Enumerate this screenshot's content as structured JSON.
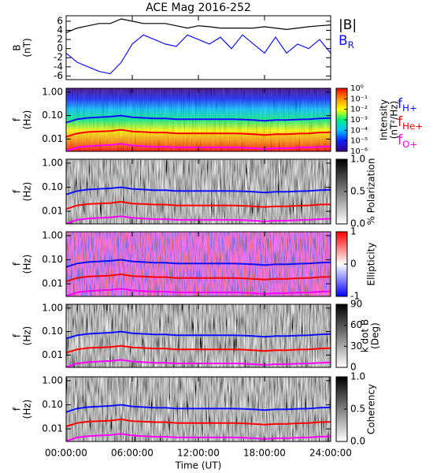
{
  "chart_data": [
    {
      "type": "line",
      "title": "ACE Mag 2016-252",
      "y_label": [
        "B",
        "(nT)"
      ],
      "x": [
        0,
        1,
        2,
        3,
        4,
        5,
        6,
        7,
        8,
        9,
        10,
        11,
        12,
        13,
        14,
        15,
        16,
        17,
        18,
        19,
        20,
        21,
        22,
        23,
        24
      ],
      "xlim": [
        0,
        24
      ],
      "xticks": [
        0,
        6,
        12,
        18,
        24
      ],
      "ylim": [
        -6.8,
        7.2
      ],
      "yticks": [
        6,
        4,
        2,
        0,
        -2,
        -4,
        -6
      ],
      "series": [
        {
          "name": "|B|",
          "color": "#000000",
          "values": [
            3.5,
            4.5,
            5,
            5.5,
            5.5,
            6.5,
            6,
            5.5,
            5.5,
            5.5,
            5,
            4.5,
            5,
            4.8,
            4.5,
            4.5,
            4.5,
            4.5,
            4.8,
            4.5,
            4.2,
            4.5,
            4.8,
            5,
            5.2
          ]
        },
        {
          "name": "BR",
          "color": "#1010ff",
          "values": [
            -1,
            -3,
            -4,
            -5,
            -5.5,
            -3,
            1,
            3,
            2,
            1,
            0.5,
            3,
            2,
            1,
            2.5,
            0,
            3,
            1,
            -1,
            2.5,
            -1,
            1,
            0,
            2,
            -1
          ]
        }
      ]
    },
    {
      "type": "spectrogram",
      "y_label": [
        "f",
        "(Hz)"
      ],
      "log": true,
      "x": [
        0,
        1,
        2,
        3,
        4,
        5,
        6,
        7,
        8,
        9,
        10,
        11,
        12,
        13,
        14,
        15,
        16,
        17,
        18,
        19,
        20,
        21,
        22,
        23,
        24
      ],
      "xlim": [
        0,
        24
      ],
      "xticks": [
        0,
        6,
        12,
        18,
        24
      ],
      "ylim": [
        0.003,
        1.45
      ],
      "yticks": [
        {
          "value": 1,
          "label": "1.00"
        },
        {
          "value": 0.1,
          "label": "0.10"
        },
        {
          "value": 0.01,
          "label": "0.01"
        }
      ],
      "colorbar": {
        "label": [
          "Intensity",
          "(nT²/Hz)"
        ],
        "log": true,
        "lim": [
          1e-06,
          1
        ],
        "colors": [
          "#3a0080",
          "#1020ff",
          "#00c0ff",
          "#00f080",
          "#ffff00",
          "#ff9000",
          "#ff0000"
        ],
        "ticks": [
          {
            "value": 1,
            "label": "10⁰"
          },
          {
            "value": 0.1,
            "label": "10⁻¹"
          },
          {
            "value": 0.01,
            "label": "10⁻²"
          },
          {
            "value": 0.001,
            "label": "10⁻³"
          },
          {
            "value": 0.0001,
            "label": "10⁻⁴"
          },
          {
            "value": 1e-05,
            "label": "10⁻⁵"
          },
          {
            "value": 1e-06,
            "label": "10⁻⁶"
          }
        ]
      },
      "series": [
        {
          "name": "fH+",
          "color": "#1010ff",
          "values": [
            0.05,
            0.07,
            0.08,
            0.085,
            0.09,
            0.1,
            0.085,
            0.08,
            0.075,
            0.075,
            0.07,
            0.07,
            0.07,
            0.07,
            0.07,
            0.07,
            0.068,
            0.065,
            0.06,
            0.065,
            0.065,
            0.068,
            0.07,
            0.075,
            0.078
          ]
        },
        {
          "name": "fHe+",
          "color": "#ff0000",
          "values": [
            0.0125,
            0.0175,
            0.02,
            0.021,
            0.022,
            0.025,
            0.021,
            0.02,
            0.019,
            0.019,
            0.0175,
            0.0175,
            0.0175,
            0.0175,
            0.0175,
            0.0175,
            0.017,
            0.016,
            0.015,
            0.016,
            0.016,
            0.017,
            0.0175,
            0.019,
            0.0195
          ]
        },
        {
          "name": "fO+",
          "color": "#ff00ff",
          "values": [
            0.0031,
            0.0044,
            0.005,
            0.0053,
            0.0056,
            0.0063,
            0.0053,
            0.005,
            0.0047,
            0.0047,
            0.0044,
            0.0044,
            0.0044,
            0.0044,
            0.0044,
            0.0044,
            0.0043,
            0.0041,
            0.0038,
            0.0041,
            0.0041,
            0.0043,
            0.0044,
            0.0047,
            0.0049
          ]
        }
      ]
    },
    {
      "type": "spectrogram",
      "y_label": [
        "f",
        "(Hz)"
      ],
      "log": true,
      "x": [
        0,
        1,
        2,
        3,
        4,
        5,
        6,
        7,
        8,
        9,
        10,
        11,
        12,
        13,
        14,
        15,
        16,
        17,
        18,
        19,
        20,
        21,
        22,
        23,
        24
      ],
      "xlim": [
        0,
        24
      ],
      "xticks": [
        0,
        6,
        12,
        18,
        24
      ],
      "ylim": [
        0.003,
        1.45
      ],
      "yticks": [
        {
          "value": 1,
          "label": "1.00"
        },
        {
          "value": 0.1,
          "label": "0.10"
        },
        {
          "value": 0.01,
          "label": "0.01"
        }
      ],
      "colorbar": {
        "label": [
          "% Polarization"
        ],
        "log": false,
        "lim": [
          0,
          1
        ],
        "colors": [
          "#ffffff",
          "#000000"
        ],
        "ticks": [
          {
            "value": 1,
            "label": "1.0"
          },
          {
            "value": 0.5,
            "label": "0.5"
          },
          {
            "value": 0,
            "label": "0.0"
          }
        ]
      },
      "series": [
        {
          "color": "#1010ff",
          "values": [
            0.05,
            0.07,
            0.08,
            0.085,
            0.09,
            0.1,
            0.085,
            0.08,
            0.075,
            0.075,
            0.07,
            0.07,
            0.07,
            0.07,
            0.07,
            0.07,
            0.068,
            0.065,
            0.06,
            0.065,
            0.065,
            0.068,
            0.07,
            0.075,
            0.078
          ]
        },
        {
          "color": "#ff0000",
          "values": [
            0.0125,
            0.0175,
            0.02,
            0.021,
            0.022,
            0.025,
            0.021,
            0.02,
            0.019,
            0.019,
            0.0175,
            0.0175,
            0.0175,
            0.0175,
            0.0175,
            0.0175,
            0.017,
            0.016,
            0.015,
            0.016,
            0.016,
            0.017,
            0.0175,
            0.019,
            0.0195
          ]
        },
        {
          "color": "#ff00ff",
          "values": [
            0.0031,
            0.0044,
            0.005,
            0.0053,
            0.0056,
            0.0063,
            0.0053,
            0.005,
            0.0047,
            0.0047,
            0.0044,
            0.0044,
            0.0044,
            0.0044,
            0.0044,
            0.0044,
            0.0043,
            0.0041,
            0.0038,
            0.0041,
            0.0041,
            0.0043,
            0.0044,
            0.0047,
            0.0049
          ]
        }
      ]
    },
    {
      "type": "spectrogram",
      "y_label": [
        "f",
        "(Hz)"
      ],
      "log": true,
      "x": [
        0,
        1,
        2,
        3,
        4,
        5,
        6,
        7,
        8,
        9,
        10,
        11,
        12,
        13,
        14,
        15,
        16,
        17,
        18,
        19,
        20,
        21,
        22,
        23,
        24
      ],
      "xlim": [
        0,
        24
      ],
      "xticks": [
        0,
        6,
        12,
        18,
        24
      ],
      "ylim": [
        0.003,
        1.45
      ],
      "yticks": [
        {
          "value": 1,
          "label": "1.00"
        },
        {
          "value": 0.1,
          "label": "0.10"
        },
        {
          "value": 0.01,
          "label": "0.01"
        }
      ],
      "colorbar": {
        "label": [
          "Ellipticity"
        ],
        "log": false,
        "lim": [
          -1,
          1
        ],
        "colors": [
          "#0000ff",
          "#ffffff",
          "#ff0000"
        ],
        "ticks": [
          1,
          0,
          -1
        ]
      },
      "series": [
        {
          "color": "#1010ff",
          "values": [
            0.05,
            0.07,
            0.08,
            0.085,
            0.09,
            0.1,
            0.085,
            0.08,
            0.075,
            0.075,
            0.07,
            0.07,
            0.07,
            0.07,
            0.07,
            0.07,
            0.068,
            0.065,
            0.06,
            0.065,
            0.065,
            0.068,
            0.07,
            0.075,
            0.078
          ]
        },
        {
          "color": "#ff0000",
          "values": [
            0.0125,
            0.0175,
            0.02,
            0.021,
            0.022,
            0.025,
            0.021,
            0.02,
            0.019,
            0.019,
            0.0175,
            0.0175,
            0.0175,
            0.0175,
            0.0175,
            0.0175,
            0.017,
            0.016,
            0.015,
            0.016,
            0.016,
            0.017,
            0.0175,
            0.019,
            0.0195
          ]
        },
        {
          "color": "#ff00ff",
          "values": [
            0.0031,
            0.0044,
            0.005,
            0.0053,
            0.0056,
            0.0063,
            0.0053,
            0.005,
            0.0047,
            0.0047,
            0.0044,
            0.0044,
            0.0044,
            0.0044,
            0.0044,
            0.0044,
            0.0043,
            0.0041,
            0.0038,
            0.0041,
            0.0041,
            0.0043,
            0.0044,
            0.0047,
            0.0049
          ]
        }
      ]
    },
    {
      "type": "spectrogram",
      "y_label": [
        "f",
        "(Hz)"
      ],
      "log": true,
      "x": [
        0,
        1,
        2,
        3,
        4,
        5,
        6,
        7,
        8,
        9,
        10,
        11,
        12,
        13,
        14,
        15,
        16,
        17,
        18,
        19,
        20,
        21,
        22,
        23,
        24
      ],
      "xlim": [
        0,
        24
      ],
      "xticks": [
        0,
        6,
        12,
        18,
        24
      ],
      "ylim": [
        0.003,
        1.45
      ],
      "yticks": [
        {
          "value": 1,
          "label": "1.00"
        },
        {
          "value": 0.1,
          "label": "0.10"
        },
        {
          "value": 0.01,
          "label": "0.01"
        }
      ],
      "colorbar": {
        "label": [
          "k dot B",
          "(Deg)"
        ],
        "log": false,
        "lim": [
          0,
          90
        ],
        "colors": [
          "#ffffff",
          "#000000"
        ],
        "ticks": [
          90,
          60,
          30,
          0
        ]
      },
      "series": [
        {
          "color": "#1010ff",
          "values": [
            0.05,
            0.07,
            0.08,
            0.085,
            0.09,
            0.1,
            0.085,
            0.08,
            0.075,
            0.075,
            0.07,
            0.07,
            0.07,
            0.07,
            0.07,
            0.07,
            0.068,
            0.065,
            0.06,
            0.065,
            0.065,
            0.068,
            0.07,
            0.075,
            0.078
          ]
        },
        {
          "color": "#ff0000",
          "values": [
            0.0125,
            0.0175,
            0.02,
            0.021,
            0.022,
            0.025,
            0.021,
            0.02,
            0.019,
            0.019,
            0.0175,
            0.0175,
            0.0175,
            0.0175,
            0.0175,
            0.0175,
            0.017,
            0.016,
            0.015,
            0.016,
            0.016,
            0.017,
            0.0175,
            0.019,
            0.0195
          ]
        },
        {
          "color": "#ff00ff",
          "values": [
            0.0031,
            0.0044,
            0.005,
            0.0053,
            0.0056,
            0.0063,
            0.0053,
            0.005,
            0.0047,
            0.0047,
            0.0044,
            0.0044,
            0.0044,
            0.0044,
            0.0044,
            0.0044,
            0.0043,
            0.0041,
            0.0038,
            0.0041,
            0.0041,
            0.0043,
            0.0044,
            0.0047,
            0.0049
          ]
        }
      ]
    },
    {
      "type": "spectrogram",
      "y_label": [
        "f",
        "(Hz)"
      ],
      "log": true,
      "x_label": "Time (UT)",
      "x": [
        0,
        1,
        2,
        3,
        4,
        5,
        6,
        7,
        8,
        9,
        10,
        11,
        12,
        13,
        14,
        15,
        16,
        17,
        18,
        19,
        20,
        21,
        22,
        23,
        24
      ],
      "xlim": [
        0,
        24
      ],
      "xticks": [
        {
          "value": 0,
          "label": "00:00:00"
        },
        {
          "value": 6,
          "label": "06:00:00"
        },
        {
          "value": 12,
          "label": "12:00:00"
        },
        {
          "value": 18,
          "label": "18:00:00"
        },
        {
          "value": 24,
          "label": "24:00:00"
        }
      ],
      "ylim": [
        0.003,
        1.45
      ],
      "yticks": [
        {
          "value": 1,
          "label": "1.00"
        },
        {
          "value": 0.1,
          "label": "0.10"
        },
        {
          "value": 0.01,
          "label": "0.01"
        }
      ],
      "colorbar": {
        "label": [
          "Coherency"
        ],
        "log": false,
        "lim": [
          0,
          1
        ],
        "colors": [
          "#ffffff",
          "#000000"
        ],
        "ticks": [
          {
            "value": 1,
            "label": "1.0"
          },
          {
            "value": 0.5,
            "label": "0.5"
          },
          {
            "value": 0,
            "label": "0.0"
          }
        ]
      },
      "series": [
        {
          "color": "#1010ff",
          "values": [
            0.05,
            0.07,
            0.08,
            0.085,
            0.09,
            0.1,
            0.085,
            0.08,
            0.075,
            0.075,
            0.07,
            0.07,
            0.07,
            0.07,
            0.07,
            0.07,
            0.068,
            0.065,
            0.06,
            0.065,
            0.065,
            0.068,
            0.07,
            0.075,
            0.078
          ]
        },
        {
          "color": "#ff0000",
          "values": [
            0.0125,
            0.0175,
            0.02,
            0.021,
            0.022,
            0.025,
            0.021,
            0.02,
            0.019,
            0.019,
            0.0175,
            0.0175,
            0.0175,
            0.0175,
            0.0175,
            0.0175,
            0.017,
            0.016,
            0.015,
            0.016,
            0.016,
            0.017,
            0.0175,
            0.019,
            0.0195
          ]
        },
        {
          "color": "#ff00ff",
          "values": [
            0.0031,
            0.0044,
            0.005,
            0.0053,
            0.0056,
            0.0063,
            0.0053,
            0.005,
            0.0047,
            0.0047,
            0.0044,
            0.0044,
            0.0044,
            0.0044,
            0.0044,
            0.0044,
            0.0043,
            0.0041,
            0.0038,
            0.0041,
            0.0041,
            0.0043,
            0.0044,
            0.0047,
            0.0049
          ]
        }
      ]
    }
  ]
}
